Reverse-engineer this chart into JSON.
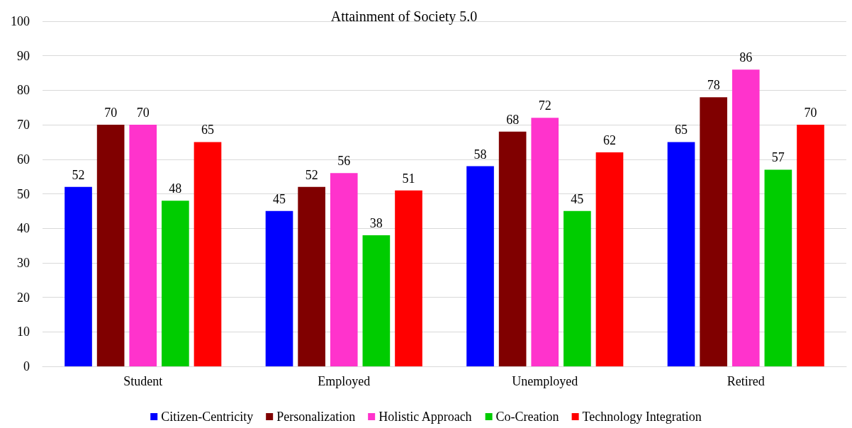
{
  "chart_data": {
    "type": "bar",
    "title": "Attainment of Society 5.0",
    "categories": [
      "Student",
      "Employed",
      "Unemployed",
      "Retired"
    ],
    "series": [
      {
        "name": "Citizen-Centricity",
        "color": "#0000ff",
        "values": [
          52,
          45,
          58,
          65
        ]
      },
      {
        "name": "Personalization",
        "color": "#800000",
        "values": [
          70,
          52,
          68,
          78
        ]
      },
      {
        "name": "Holistic Approach",
        "color": "#ff33cc",
        "values": [
          70,
          56,
          72,
          86
        ]
      },
      {
        "name": "Co-Creation",
        "color": "#00cc00",
        "values": [
          48,
          38,
          45,
          57
        ]
      },
      {
        "name": "Technology Integration",
        "color": "#ff0000",
        "values": [
          65,
          51,
          62,
          70
        ]
      }
    ],
    "ylim": [
      0,
      100
    ],
    "yticks": [
      0,
      10,
      20,
      30,
      40,
      50,
      60,
      70,
      80,
      90,
      100
    ],
    "grid": "y",
    "legend": "bottom",
    "data_labels": true
  }
}
